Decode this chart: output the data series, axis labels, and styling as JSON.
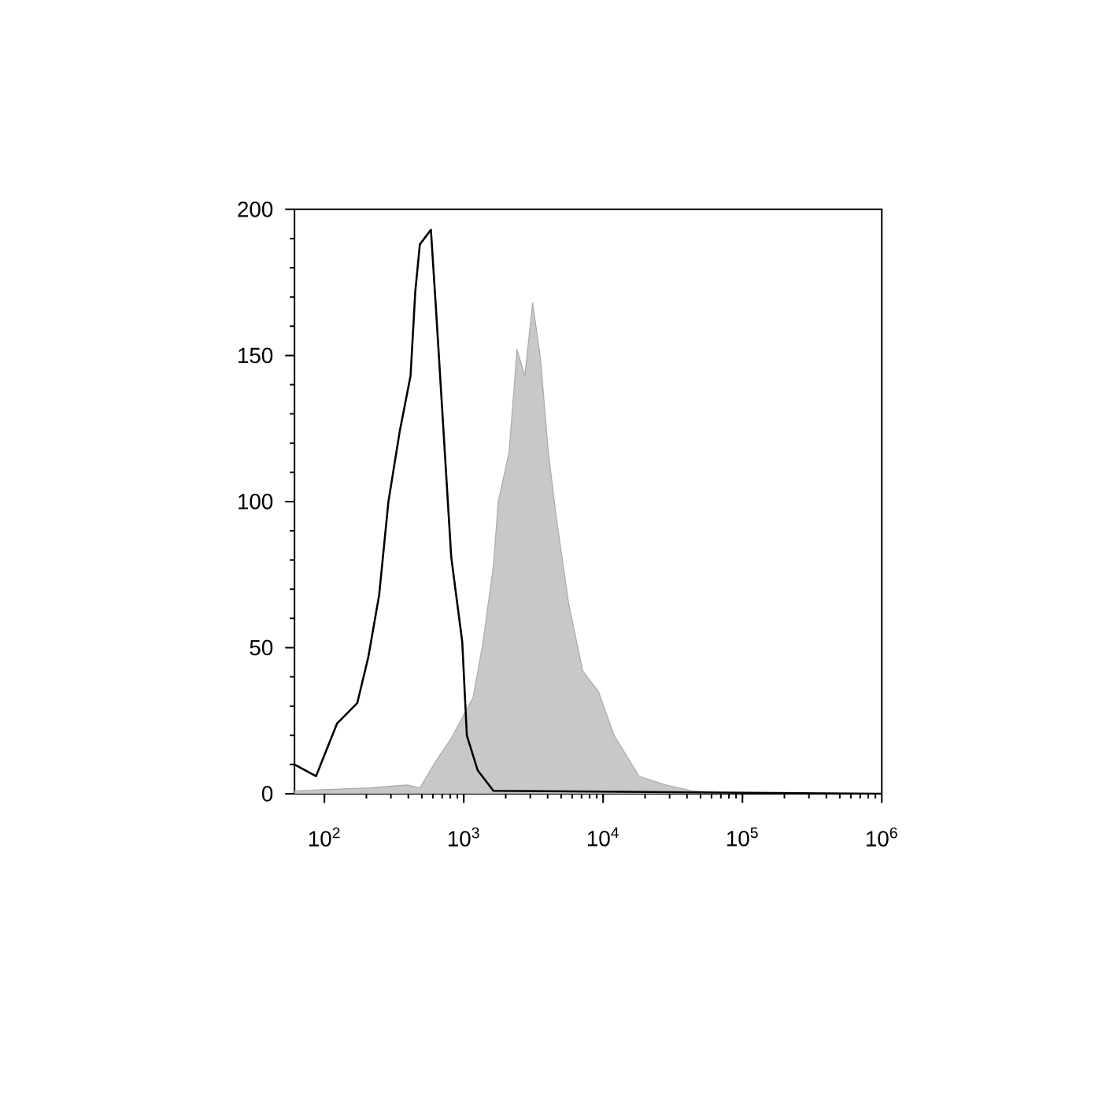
{
  "chart_data": {
    "type": "line",
    "log": "x",
    "grid": false,
    "marker": "none",
    "xlim": [
      61,
      1000000
    ],
    "ylim": [
      0,
      200
    ],
    "xticks": [
      {
        "value": 100,
        "label": "10$^{2}$"
      },
      {
        "value": 1000,
        "label": "10$^{3}$"
      },
      {
        "value": 10000,
        "label": "10$^{4}$"
      },
      {
        "value": 100000,
        "label": "10$^{5}$"
      },
      {
        "value": 1000000,
        "label": "10$^{6}$"
      }
    ],
    "yticks": [
      0,
      50,
      100,
      150,
      200
    ],
    "series": [
      {
        "type": "area",
        "color": "#c9c7c7",
        "x": [
          61,
          207,
          394,
          484,
          628,
          813,
          1167,
          1365,
          1633,
          1767,
          2117,
          2410,
          2742,
          3121,
          3553,
          4044,
          4603,
          5662,
          7148,
          9254,
          11990,
          18130,
          28130,
          43650,
          100000,
          1000000
        ],
        "values": [
          1,
          2,
          3,
          2,
          11,
          19,
          33,
          51,
          78,
          100,
          117,
          152,
          143,
          168,
          149,
          117,
          95,
          65,
          42,
          35,
          20,
          6,
          3,
          1,
          0,
          0
        ]
      },
      {
        "color": "#000000",
        "x": [
          61,
          87,
          123,
          172,
          207,
          247,
          288,
          347,
          415,
          449,
          484,
          581,
          628,
          697,
          813,
          975,
          1052,
          1259,
          1633,
          1000000
        ],
        "values": [
          10,
          6,
          24,
          31,
          47,
          68,
          100,
          124,
          143,
          172,
          188,
          193,
          168,
          133,
          81,
          52,
          20,
          8,
          1,
          0
        ]
      }
    ]
  }
}
